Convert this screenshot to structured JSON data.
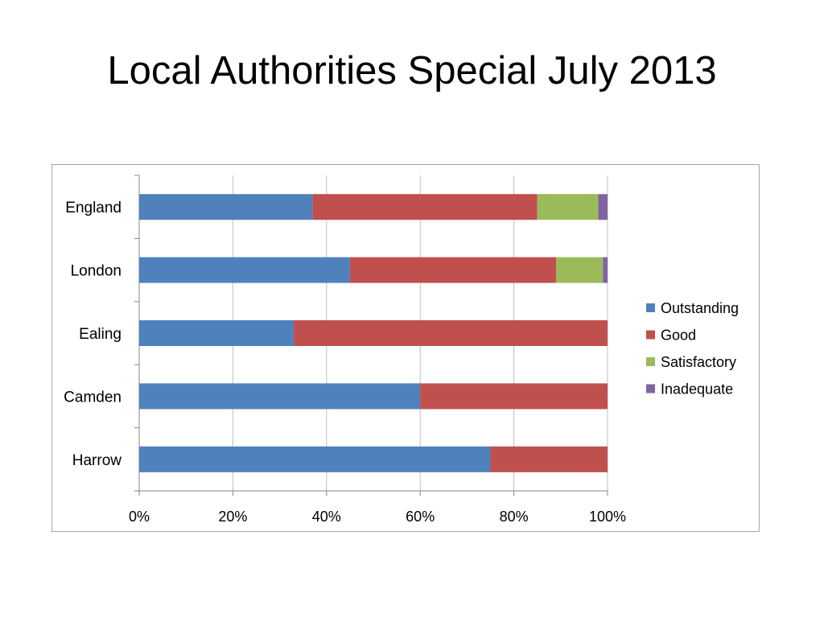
{
  "slide": {
    "title": "Local Authorities Special July 2013"
  },
  "chart_data": {
    "type": "bar",
    "orientation": "horizontal",
    "stacked": "percent",
    "title": "",
    "xlabel": "",
    "ylabel": "",
    "categories": [
      "England",
      "London",
      "Ealing",
      "Camden",
      "Harrow"
    ],
    "series": [
      {
        "name": "Outstanding",
        "color": "#4f81bd",
        "values": [
          37,
          45,
          33,
          60,
          75
        ]
      },
      {
        "name": "Good",
        "color": "#c0504d",
        "values": [
          48,
          44,
          67,
          40,
          25
        ]
      },
      {
        "name": "Satisfactory",
        "color": "#9bbb59",
        "values": [
          13,
          10,
          0,
          0,
          0
        ]
      },
      {
        "name": "Inadequate",
        "color": "#8064a2",
        "values": [
          2,
          1,
          0,
          0,
          0
        ]
      }
    ],
    "xlim": [
      0,
      100
    ],
    "x_ticks": [
      "0%",
      "20%",
      "40%",
      "60%",
      "80%",
      "100%"
    ],
    "grid": "vertical",
    "legend": "right"
  }
}
